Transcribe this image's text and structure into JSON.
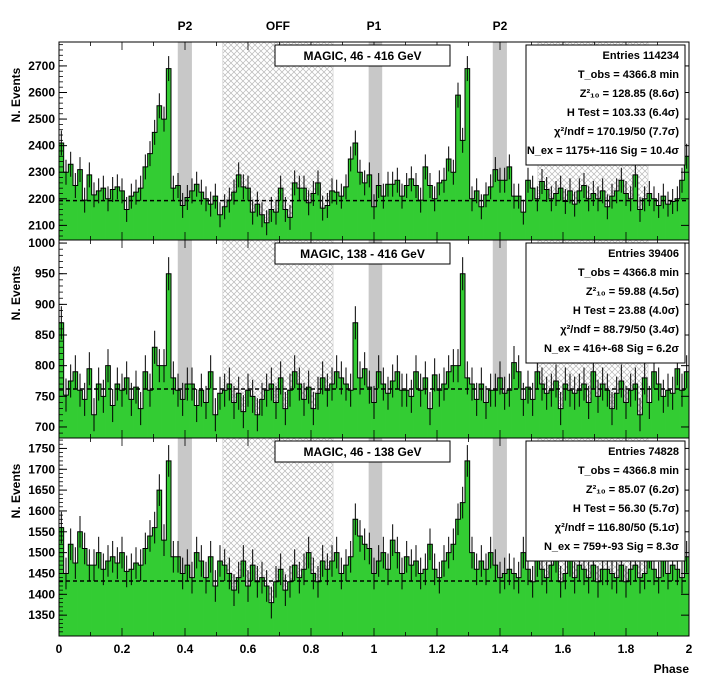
{
  "chart_data": {
    "type": "histogram",
    "x_axis": {
      "label": "Phase",
      "range": [
        0,
        2
      ],
      "ticks": [
        "0",
        "0.2",
        "0.4",
        "0.6",
        "0.8",
        "1",
        "1.2",
        "1.4",
        "1.6",
        "1.8",
        "2"
      ]
    },
    "top_markers": [
      {
        "label": "P2",
        "x": 0.4
      },
      {
        "label": "OFF",
        "x": 0.695
      },
      {
        "label": "P1",
        "x": 1.0
      },
      {
        "label": "P2",
        "x": 1.4
      }
    ],
    "regions": {
      "P1": [
        [
          0.983,
          1.026
        ]
      ],
      "P2": [
        [
          0.377,
          0.422
        ],
        [
          1.377,
          1.422
        ]
      ],
      "OFF": [
        [
          0.52,
          0.87
        ],
        [
          1.52,
          1.87
        ]
      ]
    },
    "panels": [
      {
        "title": "MAGIC, 46 - 416 GeV",
        "ylabel": "N. Events",
        "ylim": [
          2045,
          2790
        ],
        "yticks": [
          2100,
          2200,
          2300,
          2400,
          2500,
          2600,
          2700
        ],
        "baseline": 2193,
        "stats": [
          {
            "label": "Entries",
            "value": "114234"
          },
          {
            "label": "T_obs",
            "value": "= 4366.8 min"
          },
          {
            "label": "Z²₁₀",
            "value": "= 128.85  (8.6σ)"
          },
          {
            "label": "H Test",
            "value": "= 103.33  (6.4σ)"
          },
          {
            "label": "χ²/ndf",
            "value": "= 170.19/50  (7.7σ)"
          },
          {
            "label": "N_ex",
            "value": "= 1175+-116   Sig = 10.4σ"
          }
        ],
        "values": [
          2410,
          2300,
          2330,
          2250,
          2310,
          2195,
          2290,
          2215,
          2230,
          2240,
          2200,
          2235,
          2245,
          2230,
          2160,
          2210,
          2225,
          2240,
          2320,
          2370,
          2450,
          2550,
          2500,
          2690,
          2240,
          2250,
          2175,
          2205,
          2230,
          2255,
          2225,
          2200,
          2180,
          2210,
          2140,
          2170,
          2195,
          2225,
          2290,
          2245,
          2240,
          2150,
          2180,
          2140,
          2110,
          2160,
          2150,
          2240,
          2160,
          2130,
          2260,
          2240,
          2240,
          2185,
          2220,
          2260,
          2165,
          2175,
          2230,
          2225,
          2210,
          2245,
          2350,
          2410,
          2300,
          2260,
          2290,
          2170,
          2250,
          2210,
          2255,
          2255,
          2270,
          2210,
          2250,
          2275,
          2250,
          2195,
          2320,
          2250,
          2200,
          2260,
          2270,
          2350,
          2300,
          2590,
          2420,
          2690,
          2200,
          2230,
          2170,
          2215,
          2245,
          2310,
          2270,
          2270,
          2320,
          2210,
          2210,
          2150,
          2270,
          2240,
          2200,
          2265,
          2235,
          2200,
          2220,
          2240,
          2190,
          2230,
          2180,
          2230,
          2250,
          2200,
          2220,
          2200,
          2230,
          2170,
          2210,
          2230,
          2270,
          2220,
          2200,
          2290,
          2160,
          2200,
          2220,
          2200,
          2175,
          2210,
          2180,
          2190,
          2200,
          2270,
          2360
        ],
        "errors": 47
      },
      {
        "title": "MAGIC, 138 - 416 GeV",
        "ylabel": "N. Events",
        "ylim": [
          682,
          1005
        ],
        "yticks": [
          700,
          750,
          800,
          850,
          900,
          950,
          1000
        ],
        "baseline": 762,
        "stats": [
          {
            "label": "Entries",
            "value": "39406"
          },
          {
            "label": "T_obs",
            "value": "= 4366.8 min"
          },
          {
            "label": "Z²₁₀",
            "value": "= 59.88  (4.5σ)"
          },
          {
            "label": "H Test",
            "value": "= 23.88  (4.0σ)"
          },
          {
            "label": "χ²/ndf",
            "value": "= 88.79/50  (3.4σ)"
          },
          {
            "label": "N_ex",
            "value": "= 416+-68   Sig = 6.2σ"
          }
        ],
        "values": [
          870,
          752,
          775,
          790,
          760,
          745,
          795,
          720,
          770,
          750,
          800,
          735,
          770,
          760,
          780,
          745,
          765,
          730,
          790,
          760,
          830,
          800,
          800,
          950,
          780,
          760,
          745,
          770,
          770,
          735,
          760,
          740,
          790,
          720,
          755,
          760,
          770,
          740,
          755,
          725,
          760,
          750,
          720,
          745,
          760,
          770,
          740,
          780,
          730,
          760,
          790,
          770,
          745,
          765,
          730,
          755,
          780,
          760,
          770,
          790,
          780,
          770,
          760,
          870,
          780,
          795,
          765,
          740,
          790,
          770,
          755,
          775,
          790,
          760,
          760,
          750,
          790,
          760,
          780,
          730,
          785,
          760,
          770,
          790,
          800,
          800,
          950,
          780,
          770,
          745,
          770,
          740,
          760,
          760,
          780,
          755,
          760,
          805,
          790,
          745,
          765,
          745,
          790,
          770,
          755,
          760,
          775,
          730,
          770,
          760,
          755,
          760,
          770,
          740,
          790,
          750,
          770,
          760,
          730,
          755,
          775,
          740,
          760,
          770,
          720,
          780,
          740,
          790,
          770,
          750,
          760,
          755,
          795,
          760,
          790
        ],
        "errors": 27
      },
      {
        "title": "MAGIC, 46 - 138 GeV",
        "ylabel": "N. Events",
        "ylim": [
          1300,
          1775
        ],
        "yticks": [
          1350,
          1400,
          1450,
          1500,
          1550,
          1600,
          1650,
          1700,
          1750
        ],
        "baseline": 1432,
        "stats": [
          {
            "label": "Entries",
            "value": "74828"
          },
          {
            "label": "T_obs",
            "value": "= 4366.8 min"
          },
          {
            "label": "Z²₁₀",
            "value": "= 85.07  (6.2σ)"
          },
          {
            "label": "H Test",
            "value": "= 56.30  (5.7σ)"
          },
          {
            "label": "χ²/ndf",
            "value": "= 116.80/50  (5.1σ)"
          },
          {
            "label": "N_ex",
            "value": "= 759+-93   Sig = 8.3σ"
          }
        ],
        "values": [
          1560,
          1450,
          1520,
          1475,
          1550,
          1510,
          1470,
          1470,
          1500,
          1460,
          1480,
          1490,
          1475,
          1500,
          1455,
          1460,
          1475,
          1470,
          1510,
          1540,
          1560,
          1650,
          1530,
          1720,
          1490,
          1490,
          1450,
          1470,
          1440,
          1500,
          1480,
          1440,
          1490,
          1420,
          1480,
          1470,
          1450,
          1410,
          1440,
          1480,
          1420,
          1470,
          1430,
          1440,
          1420,
          1380,
          1430,
          1460,
          1410,
          1430,
          1470,
          1440,
          1460,
          1500,
          1450,
          1430,
          1480,
          1460,
          1480,
          1500,
          1450,
          1470,
          1490,
          1580,
          1540,
          1520,
          1510,
          1450,
          1480,
          1500,
          1460,
          1530,
          1500,
          1450,
          1490,
          1470,
          1480,
          1450,
          1460,
          1520,
          1460,
          1440,
          1480,
          1500,
          1520,
          1580,
          1620,
          1720,
          1500,
          1460,
          1480,
          1460,
          1500,
          1470,
          1440,
          1450,
          1460,
          1450,
          1440,
          1500,
          1460,
          1430,
          1480,
          1460,
          1440,
          1470,
          1490,
          1430,
          1450,
          1480,
          1440,
          1470,
          1460,
          1440,
          1470,
          1430,
          1460,
          1460,
          1450,
          1440,
          1470,
          1430,
          1460,
          1470,
          1440,
          1450,
          1500,
          1460,
          1440,
          1480,
          1450,
          1470,
          1460,
          1440,
          1490
        ],
        "errors": 38
      }
    ]
  }
}
